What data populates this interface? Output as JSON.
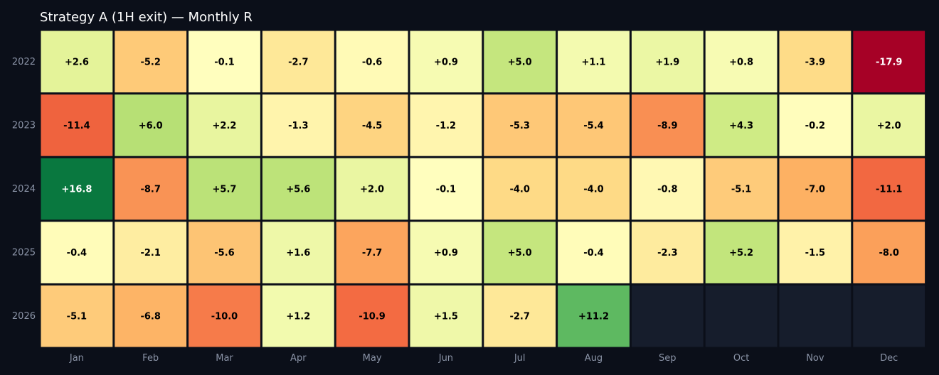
{
  "chart_data": {
    "type": "heatmap",
    "title": "Strategy A (1H exit) — Monthly R",
    "columns": [
      "Jan",
      "Feb",
      "Mar",
      "Apr",
      "May",
      "Jun",
      "Jul",
      "Aug",
      "Sep",
      "Oct",
      "Nov",
      "Dec"
    ],
    "rows": [
      "2022",
      "2023",
      "2024",
      "2025",
      "2026"
    ],
    "values": [
      [
        2.6,
        -5.2,
        -0.1,
        -2.7,
        -0.6,
        0.9,
        5.0,
        1.1,
        1.9,
        0.8,
        -3.9,
        -17.9
      ],
      [
        -11.4,
        6.0,
        2.2,
        -1.3,
        -4.5,
        -1.2,
        -5.3,
        -5.4,
        -8.9,
        4.3,
        -0.2,
        2.0
      ],
      [
        16.8,
        -8.7,
        5.7,
        5.6,
        2.0,
        -0.1,
        -4.0,
        -4.0,
        -0.8,
        -5.1,
        -7.0,
        -11.1
      ],
      [
        -0.4,
        -2.1,
        -5.6,
        1.6,
        -7.7,
        0.9,
        5.0,
        -0.4,
        -2.3,
        5.2,
        -1.5,
        -8.0
      ],
      [
        -5.1,
        -6.8,
        -10.0,
        1.2,
        -10.9,
        1.5,
        -2.7,
        11.2,
        null,
        null,
        null,
        null
      ]
    ],
    "labels": [
      [
        "+2.6",
        "-5.2",
        "-0.1",
        "-2.7",
        "-0.6",
        "+0.9",
        "+5.0",
        "+1.1",
        "+1.9",
        "+0.8",
        "-3.9",
        "-17.9"
      ],
      [
        "-11.4",
        "+6.0",
        "+2.2",
        "-1.3",
        "-4.5",
        "-1.2",
        "-5.3",
        "-5.4",
        "-8.9",
        "+4.3",
        "-0.2",
        "+2.0"
      ],
      [
        "+16.8",
        "-8.7",
        "+5.7",
        "+5.6",
        "+2.0",
        "-0.1",
        "-4.0",
        "-4.0",
        "-0.8",
        "-5.1",
        "-7.0",
        "-11.1"
      ],
      [
        "-0.4",
        "-2.1",
        "-5.6",
        "+1.6",
        "-7.7",
        "+0.9",
        "+5.0",
        "-0.4",
        "-2.3",
        "+5.2",
        "-1.5",
        "-8.0"
      ],
      [
        "-5.1",
        "-6.8",
        "-10.0",
        "+1.2",
        "-10.9",
        "+1.5",
        "-2.7",
        "+11.2",
        "",
        "",
        "",
        ""
      ]
    ],
    "colorscale": "RdYlGn",
    "zlim": [
      -18,
      18
    ],
    "colors": {
      "background": "#0b0f19",
      "empty_cell": "#161d2c",
      "tick_label": "#8a93a6",
      "title": "#ffffff"
    }
  }
}
